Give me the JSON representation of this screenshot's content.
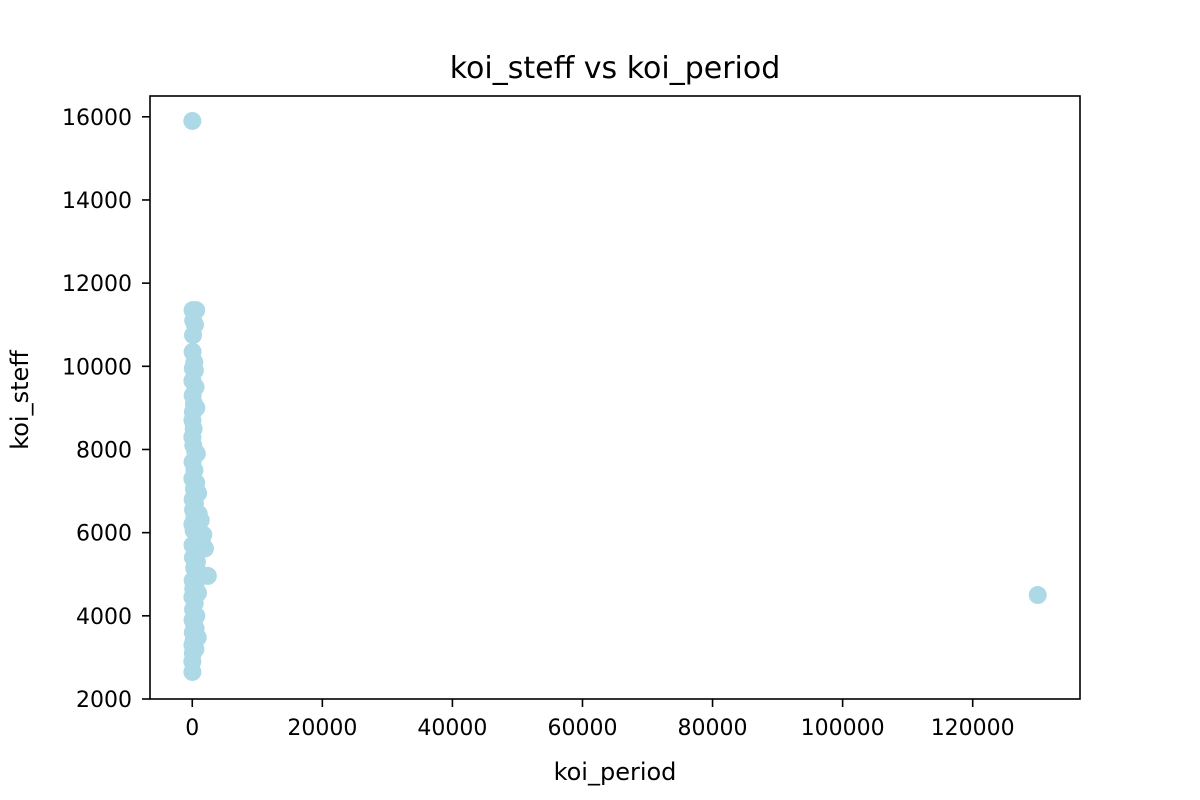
{
  "chart_data": {
    "type": "scatter",
    "title": "koi_steff vs koi_period",
    "xlabel": "koi_period",
    "ylabel": "koi_steff",
    "xlim": [
      -6500,
      136500
    ],
    "ylim": [
      2000,
      16500
    ],
    "xticks": [
      0,
      20000,
      40000,
      60000,
      80000,
      100000,
      120000
    ],
    "yticks": [
      2000,
      4000,
      6000,
      8000,
      10000,
      12000,
      14000,
      16000
    ],
    "grid": false,
    "marker_color": "#add8e6",
    "series": [
      {
        "points": [
          [
            10,
            15900
          ],
          [
            50,
            11350
          ],
          [
            600,
            11350
          ],
          [
            150,
            11100
          ],
          [
            420,
            11000
          ],
          [
            120,
            10750
          ],
          [
            50,
            10350
          ],
          [
            310,
            10100
          ],
          [
            80,
            9950
          ],
          [
            400,
            9900
          ],
          [
            20,
            9650
          ],
          [
            500,
            9500
          ],
          [
            60,
            9300
          ],
          [
            260,
            9100
          ],
          [
            620,
            9000
          ],
          [
            100,
            8900
          ],
          [
            30,
            8700
          ],
          [
            210,
            8500
          ],
          [
            10,
            8300
          ],
          [
            160,
            8100
          ],
          [
            470,
            7950
          ],
          [
            700,
            7900
          ],
          [
            40,
            7700
          ],
          [
            330,
            7500
          ],
          [
            20,
            7300
          ],
          [
            600,
            7200
          ],
          [
            260,
            7050
          ],
          [
            900,
            6950
          ],
          [
            60,
            6800
          ],
          [
            410,
            6700
          ],
          [
            120,
            6550
          ],
          [
            1000,
            6450
          ],
          [
            330,
            6350
          ],
          [
            1300,
            6300
          ],
          [
            20,
            6200
          ],
          [
            520,
            6100
          ],
          [
            210,
            6050
          ],
          [
            1700,
            5950
          ],
          [
            830,
            5850
          ],
          [
            1500,
            5750
          ],
          [
            40,
            5700
          ],
          [
            1950,
            5620
          ],
          [
            400,
            5500
          ],
          [
            100,
            5400
          ],
          [
            720,
            5300
          ],
          [
            300,
            5150
          ],
          [
            950,
            5050
          ],
          [
            2400,
            4960
          ],
          [
            60,
            4850
          ],
          [
            500,
            4750
          ],
          [
            150,
            4650
          ],
          [
            880,
            4550
          ],
          [
            20,
            4450
          ],
          [
            380,
            4300
          ],
          [
            120,
            4150
          ],
          [
            620,
            4000
          ],
          [
            40,
            3900
          ],
          [
            270,
            3800
          ],
          [
            510,
            3700
          ],
          [
            80,
            3600
          ],
          [
            840,
            3480
          ],
          [
            200,
            3400
          ],
          [
            30,
            3300
          ],
          [
            480,
            3200
          ],
          [
            90,
            3100
          ],
          [
            10,
            2900
          ],
          [
            20,
            2650
          ],
          [
            130000,
            4500
          ]
        ]
      }
    ]
  }
}
